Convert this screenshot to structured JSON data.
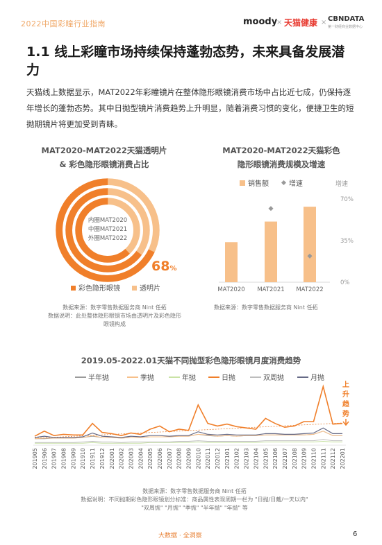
{
  "header": {
    "report_title": "2022中国彩瞳行业指南",
    "brand_moody": "moody",
    "brand_separator": "×",
    "brand_tmall": "天猫健康",
    "brand_cbn": "CBNDATA",
    "brand_cbn_sub": "第一财经商业数据中心"
  },
  "page": {
    "title": "1.1 线上彩瞳市场持续保持蓬勃态势，未来具备发展潜力",
    "intro": "天猫线上数据显示，MAT2022年彩瞳镜片在整体隐形眼镜消费市场中占比近七成，仍保持逐年增长的蓬勃态势。其中日抛型镜片消费趋势上升明显，随着消费习惯的变化，便捷卫生的短抛期镜片将更加受到青睐。",
    "footer_brand": "大数据 · 全洞察",
    "page_number": "6"
  },
  "colors": {
    "orange": "#f07f2a",
    "light_orange": "#f7c08a",
    "gray": "#9a9a9a",
    "green": "#c9e3a5",
    "purple": "#666a86",
    "orange_title": "#f0a96a"
  },
  "chart1": {
    "title_line1": "MAT2020-MAT2022天猫透明片",
    "title_line2": "& 彩色隐形眼镜消费占比",
    "ring_labels": [
      "内圈MAT2020",
      "中圈MAT2021",
      "外圈MAT2022"
    ],
    "highlight": "68",
    "highlight_unit": "%",
    "legend": [
      "彩色隐形眼镜",
      "透明片"
    ],
    "note_lines": [
      "数据来源：数字零售数据服务商 Nint 任拓",
      "数据说明：此处整体隐形眼镜市场由透明片及彩色隐形",
      "眼镜构成"
    ]
  },
  "chart2": {
    "title_line1": "MAT2020-MAT2022天猫彩色",
    "title_line2": "隐形眼镜消费规模及增速",
    "legend_sales": "销售额",
    "legend_growth": "增速",
    "right_axis_title": "增速",
    "right_ticks": [
      "70%",
      "35%",
      "0%"
    ],
    "note": "数据来源：数字零售数据服务商 Nint 任拓"
  },
  "chart3": {
    "title": "2019.05-2022.01天猫不同抛型彩色隐形眼镜月度消费趋势",
    "legend": [
      "半年抛",
      "季抛",
      "年抛",
      "日抛",
      "双周抛",
      "月抛"
    ],
    "annotation_chars": [
      "上",
      "升",
      "趋",
      "势"
    ],
    "note_line1": "数据来源：数字零售数据服务商 Nint 任拓",
    "note_line2": "数据说明：不同抛期彩色隐形眼镜划分标准：商品属性表现周期一栏为 \"日抛/日戴/一天以内\"",
    "note_line3": "\"双周抛\" \"月抛\" \"季抛\" \"半年抛\" \"年抛\" 等"
  },
  "chart_data": [
    {
      "type": "pie",
      "title": "MAT2020-MAT2022天猫透明片 & 彩色隐形眼镜消费占比",
      "categories": [
        "彩色隐形眼镜",
        "透明片"
      ],
      "series": [
        {
          "name": "MAT2020",
          "values": [
            62,
            38
          ]
        },
        {
          "name": "MAT2021",
          "values": [
            65,
            35
          ]
        },
        {
          "name": "MAT2022",
          "values": [
            68,
            32
          ]
        }
      ]
    },
    {
      "type": "bar",
      "title": "MAT2020-MAT2022天猫彩色隐形眼镜消费规模及增速",
      "categories": [
        "MAT2020",
        "MAT2021",
        "MAT2022"
      ],
      "series": [
        {
          "name": "销售额",
          "values": [
            35,
            53,
            66
          ]
        },
        {
          "name": "增速",
          "values": [
            null,
            62,
            22
          ]
        }
      ],
      "y2lim": [
        0,
        70
      ]
    },
    {
      "type": "line",
      "title": "2019.05-2022.01天猫不同抛型彩色隐形眼镜月度消费趋势",
      "x": [
        "201905",
        "201906",
        "201907",
        "201908",
        "201909",
        "201910",
        "201911",
        "201912",
        "202001",
        "202002",
        "202003",
        "202004",
        "202005",
        "202006",
        "202007",
        "202008",
        "202009",
        "202010",
        "202011",
        "202012",
        "202101",
        "202102",
        "202103",
        "202104",
        "202105",
        "202106",
        "202107",
        "202108",
        "202109",
        "202110",
        "202111",
        "202112",
        "202201"
      ],
      "series": [
        {
          "name": "半年抛",
          "values": [
            10,
            10,
            11,
            11,
            11,
            12,
            14,
            12,
            12,
            11,
            12,
            12,
            13,
            13,
            13,
            14,
            14,
            17,
            15,
            14,
            15,
            14,
            15,
            15,
            16,
            16,
            16,
            16,
            16,
            17,
            22,
            15,
            15
          ]
        },
        {
          "name": "季抛",
          "values": [
            10,
            11,
            11,
            11,
            11,
            12,
            15,
            12,
            12,
            11,
            12,
            12,
            13,
            13,
            13,
            14,
            14,
            17,
            16,
            14,
            15,
            14,
            15,
            15,
            16,
            16,
            16,
            16,
            16,
            17,
            22,
            15,
            15
          ]
        },
        {
          "name": "年抛",
          "values": [
            3,
            3,
            3,
            3,
            3,
            3,
            4,
            3,
            3,
            3,
            3,
            3,
            4,
            4,
            4,
            4,
            4,
            5,
            4,
            4,
            4,
            4,
            4,
            4,
            5,
            5,
            5,
            5,
            5,
            5,
            6,
            5,
            5
          ]
        },
        {
          "name": "日抛",
          "values": [
            14,
            22,
            15,
            17,
            16,
            16,
            34,
            20,
            18,
            15,
            19,
            17,
            25,
            30,
            21,
            25,
            23,
            63,
            34,
            30,
            33,
            29,
            27,
            25,
            42,
            34,
            28,
            30,
            37,
            37,
            92,
            33,
            34
          ]
        },
        {
          "name": "双周抛",
          "values": [
            4,
            4,
            4,
            4,
            4,
            5,
            6,
            5,
            5,
            4,
            5,
            5,
            5,
            5,
            5,
            6,
            6,
            7,
            6,
            6,
            6,
            6,
            6,
            6,
            7,
            7,
            7,
            7,
            7,
            7,
            9,
            7,
            7
          ]
        },
        {
          "name": "月抛",
          "values": [
            12,
            14,
            12,
            12,
            12,
            13,
            19,
            14,
            13,
            12,
            14,
            13,
            15,
            15,
            14,
            15,
            15,
            21,
            17,
            16,
            17,
            16,
            16,
            16,
            18,
            18,
            17,
            17,
            18,
            19,
            27,
            18,
            18
          ]
        }
      ]
    }
  ]
}
